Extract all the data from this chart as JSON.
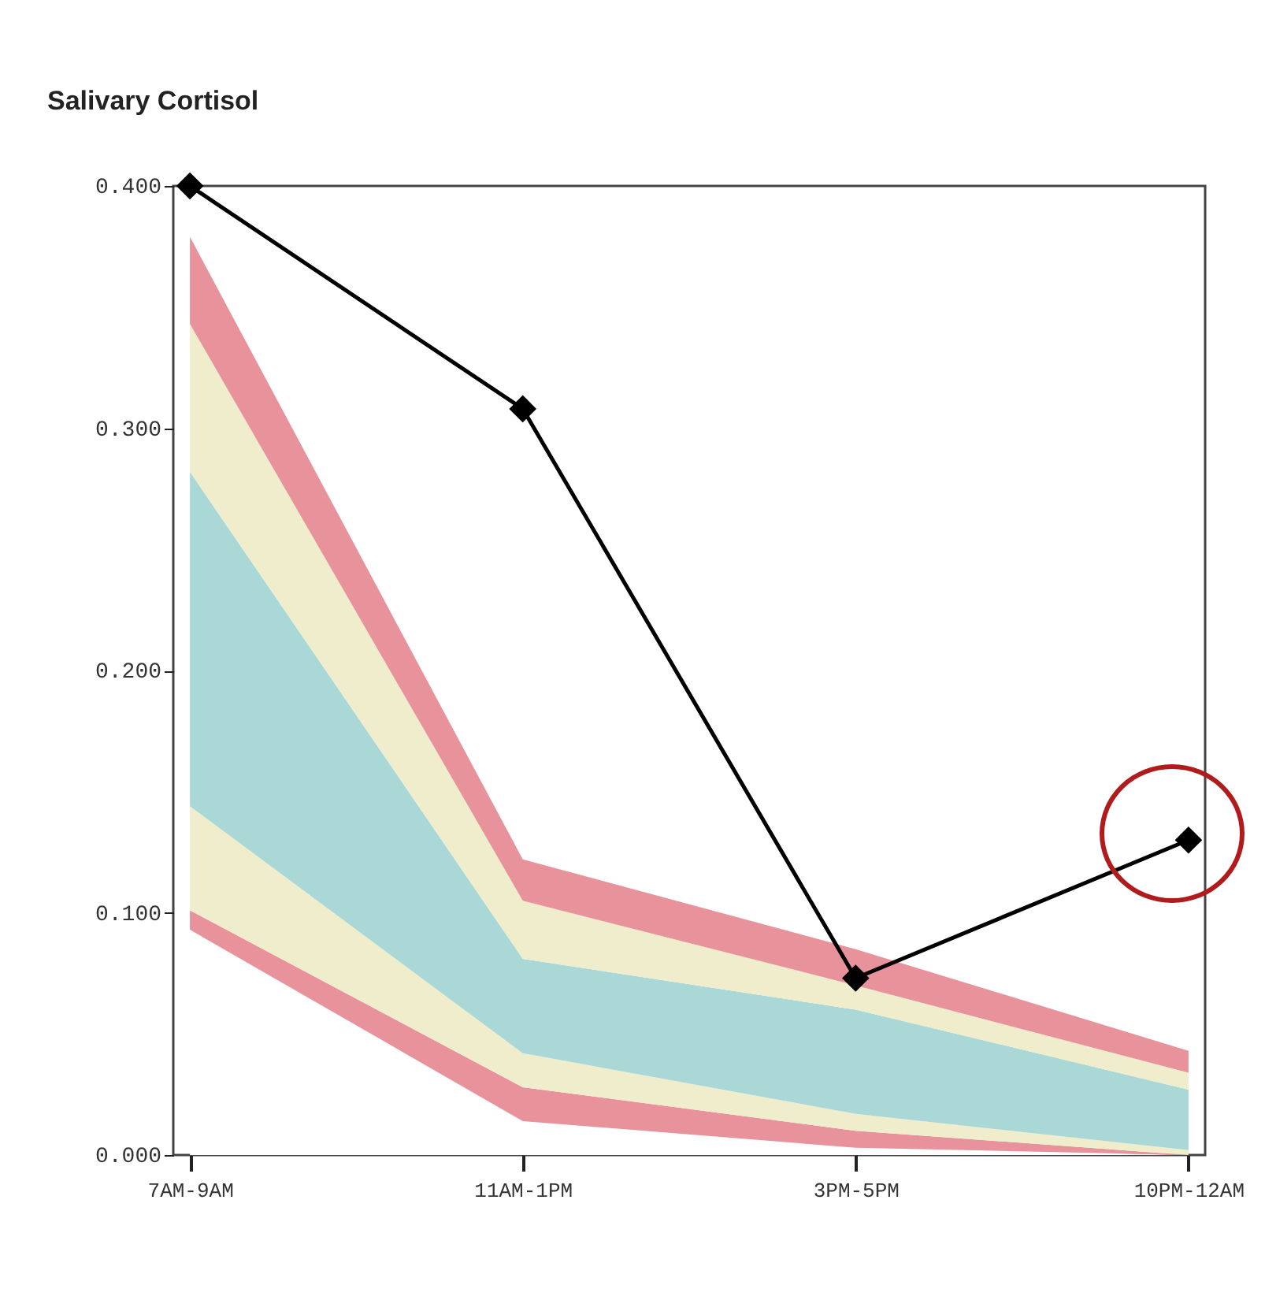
{
  "chart_data": {
    "type": "area",
    "title": "Salivary Cortisol",
    "categories": [
      "7AM-9AM",
      "11AM-1PM",
      "3PM-5PM",
      "10PM-12AM"
    ],
    "stacked": true,
    "series": [
      {
        "color": "#ffffff",
        "values": [
          0.093,
          0.014,
          0.003,
          0
        ]
      },
      {
        "color": "#e8939b",
        "values": [
          0.008,
          0.014,
          0.007,
          0
        ]
      },
      {
        "color": "#efedcc",
        "values": [
          0.043,
          0.014,
          0.007,
          0.002
        ]
      },
      {
        "color": "#a9d8d6",
        "values": [
          0.138,
          0.039,
          0.043,
          0.025
        ]
      },
      {
        "color": "#efedcc",
        "values": [
          0.061,
          0.024,
          0.01,
          0.007
        ]
      },
      {
        "color": "#e8939b",
        "values": [
          0.036,
          0.017,
          0.015,
          0.009
        ]
      },
      {
        "type": "line",
        "color": "#000000",
        "marker": "diamond",
        "values": [
          0.4,
          0.308,
          0.073,
          0.13
        ]
      }
    ],
    "ylim": [
      0,
      0.4
    ],
    "yticks": [
      {
        "value": 0,
        "label": "0.000"
      },
      {
        "value": 0.1,
        "label": "0.100"
      },
      {
        "value": 0.2,
        "label": "0.200"
      },
      {
        "value": 0.3,
        "label": "0.300"
      },
      {
        "value": 0.4,
        "label": "0.400"
      }
    ],
    "line_style": "solid",
    "grid": false,
    "legend": false
  }
}
